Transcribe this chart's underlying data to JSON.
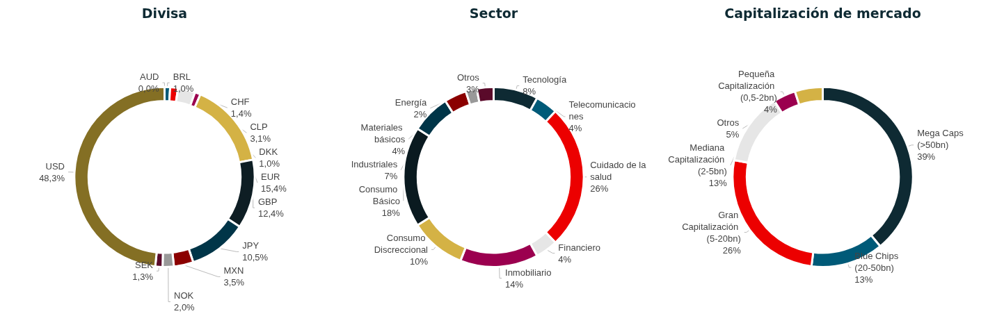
{
  "chart_data": [
    {
      "type": "donut",
      "title": "Divisa",
      "categories": [
        "AUD",
        "BRL",
        "CHF",
        "CLP",
        "DKK",
        "EUR",
        "GBP",
        "JPY",
        "MXN",
        "NOK",
        "SEK",
        "USD"
      ],
      "values": [
        0.0,
        1.0,
        1.4,
        3.1,
        1.0,
        15.4,
        12.4,
        10.5,
        3.5,
        2.0,
        1.3,
        48.3
      ],
      "value_labels": [
        "0,0%",
        "1,0%",
        "1,4%",
        "3,1%",
        "1,0%",
        "15,4%",
        "12,4%",
        "10,5%",
        "3,5%",
        "2,0%",
        "1,3%",
        "48,3%"
      ],
      "colors": [
        "#00607e",
        "#005a78",
        "#ec0000",
        "#e6e6e6",
        "#9b004f",
        "#d4b245",
        "#0e1e24",
        "#003548",
        "#8b0000",
        "#999999",
        "#5a0a2a",
        "#846f24"
      ]
    },
    {
      "type": "donut",
      "title": "Sector",
      "categories": [
        "Tecnología",
        "Telecomunicaciones",
        "Cuidado de la salud",
        "Financiero",
        "Inmobiliario",
        "Consumo Discreccional",
        "Consumo Básico",
        "Industriales",
        "Materiales básicos",
        "Energía",
        "Otros"
      ],
      "values": [
        8,
        4,
        26,
        4,
        14,
        10,
        18,
        7,
        4,
        2,
        3
      ],
      "value_labels": [
        "8%",
        "4%",
        "26%",
        "4%",
        "14%",
        "10%",
        "18%",
        "7%",
        "4%",
        "2%",
        "3%"
      ],
      "colors": [
        "#0e2a33",
        "#005a78",
        "#ec0000",
        "#e6e6e6",
        "#9b004f",
        "#d4b245",
        "#0a1a20",
        "#003548",
        "#8b0000",
        "#999999",
        "#5a0a2a"
      ]
    },
    {
      "type": "donut",
      "title": "Capitalización de mercado",
      "categories": [
        "Mega Caps (>50bn)",
        "Blue Chips (20-50bn)",
        "Gran Capitalización (5-20bn)",
        "Mediana Capitalización (2-5bn)",
        "Pequeña Capitalización (0,5-2bn)",
        "Otros"
      ],
      "values": [
        39,
        13,
        26,
        13,
        4,
        5
      ],
      "value_labels": [
        "39%",
        "13%",
        "26%",
        "13%",
        "4%",
        "5%"
      ],
      "colors": [
        "#0e2a33",
        "#005a78",
        "#ec0000",
        "#e6e6e6",
        "#9b004f",
        "#d4b245"
      ]
    }
  ]
}
